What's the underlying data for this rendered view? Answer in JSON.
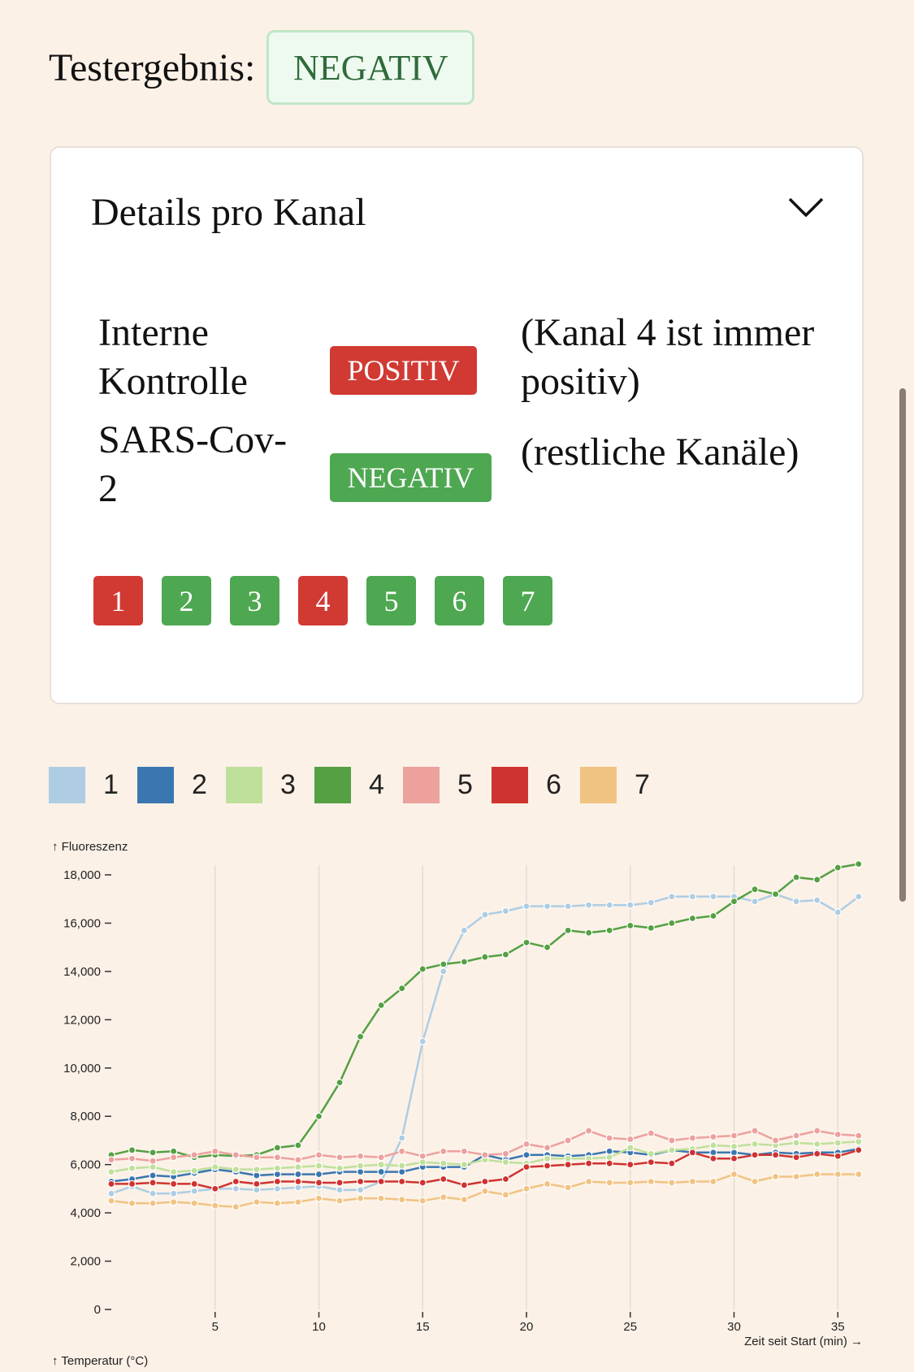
{
  "result": {
    "label": "Testergebnis:",
    "value": "NEGATIV"
  },
  "details": {
    "title": "Details pro Kanal",
    "rows": [
      {
        "label": "Interne Kontrolle",
        "status": "POSITIV",
        "note": "(Kanal 4 ist immer positiv)"
      },
      {
        "label": "SARS-Cov-2",
        "status": "NEGATIV",
        "note": "(restliche Kanäle)"
      }
    ],
    "channels": [
      {
        "label": "1",
        "status": "positive"
      },
      {
        "label": "2",
        "status": "negative"
      },
      {
        "label": "3",
        "status": "negative"
      },
      {
        "label": "4",
        "status": "positive"
      },
      {
        "label": "5",
        "status": "negative"
      },
      {
        "label": "6",
        "status": "negative"
      },
      {
        "label": "7",
        "status": "negative"
      }
    ]
  },
  "colors": {
    "positive": "#d13a33",
    "negative": "#4ea751"
  },
  "legend": [
    {
      "label": "1",
      "color": "#aecde3"
    },
    {
      "label": "2",
      "color": "#3a76b0"
    },
    {
      "label": "3",
      "color": "#bfe09a"
    },
    {
      "label": "4",
      "color": "#55a043"
    },
    {
      "label": "5",
      "color": "#eda19d"
    },
    {
      "label": "6",
      "color": "#cf3330"
    },
    {
      "label": "7",
      "color": "#f1c382"
    }
  ],
  "chart_data": {
    "type": "line",
    "ylabel": "↑ Fluoreszenz",
    "xlabel": "Zeit seit Start (min) →",
    "secondary_label": "↑ Temperatur (°C)",
    "ylim": [
      0,
      18000
    ],
    "yticks": [
      0,
      2000,
      4000,
      6000,
      8000,
      10000,
      12000,
      14000,
      16000,
      18000
    ],
    "xlim": [
      0,
      36
    ],
    "xticks": [
      5,
      10,
      15,
      20,
      25,
      30,
      35
    ],
    "grid": "vertical",
    "x": [
      0,
      1,
      2,
      3,
      4,
      5,
      6,
      7,
      8,
      9,
      10,
      11,
      12,
      13,
      14,
      15,
      16,
      17,
      18,
      19,
      20,
      21,
      22,
      23,
      24,
      25,
      26,
      27,
      28,
      29,
      30,
      31,
      32,
      33,
      34,
      35,
      36
    ],
    "series": [
      {
        "name": "1",
        "values": [
          4800,
          5100,
          4800,
          4800,
          4900,
          5000,
          5000,
          4950,
          5000,
          5050,
          5100,
          4950,
          4950,
          5300,
          7100,
          11100,
          14000,
          15700,
          16350,
          16500,
          16700,
          16700,
          16700,
          16750,
          16750,
          16750,
          16850,
          17100,
          17100,
          17100,
          17100,
          16900,
          17200,
          16900,
          16950,
          16450,
          17100
        ]
      },
      {
        "name": "2",
        "values": [
          5300,
          5400,
          5550,
          5500,
          5650,
          5800,
          5700,
          5550,
          5600,
          5600,
          5600,
          5700,
          5700,
          5700,
          5700,
          5900,
          5900,
          5900,
          6400,
          6200,
          6400,
          6400,
          6350,
          6400,
          6550,
          6500,
          6400,
          6600,
          6500,
          6500,
          6500,
          6400,
          6500,
          6450,
          6500,
          6500,
          6650
        ]
      },
      {
        "name": "3",
        "values": [
          5700,
          5850,
          5900,
          5700,
          5750,
          5900,
          5800,
          5800,
          5850,
          5900,
          5950,
          5850,
          5950,
          6000,
          5950,
          6100,
          6050,
          6000,
          6200,
          6100,
          6050,
          6250,
          6250,
          6250,
          6300,
          6700,
          6450,
          6600,
          6650,
          6800,
          6750,
          6850,
          6800,
          6900,
          6850,
          6900,
          6950
        ]
      },
      {
        "name": "4",
        "values": [
          6400,
          6600,
          6500,
          6550,
          6300,
          6400,
          6350,
          6400,
          6700,
          6800,
          8000,
          9400,
          11300,
          12600,
          13300,
          14100,
          14300,
          14400,
          14600,
          14700,
          15200,
          15000,
          15700,
          15600,
          15700,
          15900,
          15800,
          16000,
          16200,
          16300,
          16900,
          17400,
          17200,
          17900,
          17800,
          18300,
          18450
        ]
      },
      {
        "name": "5",
        "values": [
          6200,
          6250,
          6150,
          6300,
          6400,
          6550,
          6400,
          6300,
          6300,
          6200,
          6400,
          6300,
          6350,
          6300,
          6550,
          6350,
          6550,
          6550,
          6400,
          6450,
          6850,
          6700,
          7000,
          7400,
          7100,
          7050,
          7300,
          7000,
          7100,
          7150,
          7200,
          7400,
          7000,
          7200,
          7400,
          7250,
          7200
        ]
      },
      {
        "name": "6",
        "values": [
          5200,
          5200,
          5250,
          5200,
          5200,
          5000,
          5300,
          5200,
          5300,
          5300,
          5250,
          5250,
          5300,
          5300,
          5300,
          5250,
          5400,
          5150,
          5300,
          5400,
          5900,
          5950,
          6000,
          6050,
          6050,
          6000,
          6100,
          6050,
          6500,
          6250,
          6250,
          6400,
          6400,
          6300,
          6450,
          6350,
          6600
        ]
      },
      {
        "name": "7",
        "values": [
          4500,
          4400,
          4400,
          4450,
          4400,
          4300,
          4250,
          4450,
          4400,
          4450,
          4600,
          4500,
          4600,
          4600,
          4550,
          4500,
          4650,
          4550,
          4900,
          4750,
          5000,
          5200,
          5050,
          5300,
          5250,
          5250,
          5300,
          5250,
          5300,
          5300,
          5600,
          5300,
          5500,
          5500,
          5600,
          5600,
          5600
        ]
      }
    ]
  }
}
